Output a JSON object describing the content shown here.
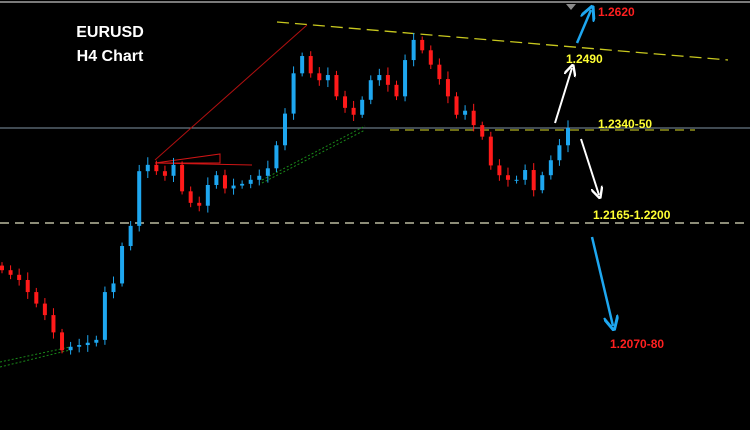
{
  "chart_data": {
    "type": "candlestick",
    "title": "EURUSD",
    "subtitle": "H4 Chart",
    "grid": false,
    "colors": {
      "background": "#000000",
      "bull": "#1ea7f0",
      "bear": "#ff1a1a",
      "level_label": "#ffff33",
      "target_label": "#ff2020",
      "trendline": "#c8c81e"
    },
    "ylim": [
      1.19,
      1.27
    ],
    "closes": [
      1.2098,
      1.209,
      1.2081,
      1.206,
      1.204,
      1.202,
      1.199,
      1.1959,
      1.1965,
      1.1968,
      1.1972,
      1.1977,
      1.206,
      1.2075,
      1.214,
      1.2175,
      1.227,
      1.2281,
      1.227,
      1.2262,
      1.2281,
      1.2235,
      1.2215,
      1.221,
      1.2246,
      1.2263,
      1.224,
      1.2245,
      1.2248,
      1.2255,
      1.2262,
      1.2275,
      1.2315,
      1.237,
      1.244,
      1.247,
      1.244,
      1.2428,
      1.2437,
      1.24,
      1.238,
      1.2368,
      1.2394,
      1.2428,
      1.2437,
      1.242,
      1.24,
      1.2463,
      1.2498,
      1.248,
      1.2455,
      1.243,
      1.24,
      1.2368,
      1.2375,
      1.235,
      1.233,
      1.228,
      1.2263,
      1.2255,
      1.2255,
      1.2272,
      1.2237,
      1.2263,
      1.2289,
      1.2315,
      1.2345
    ],
    "annotations": {
      "target_high": "1.2620",
      "resistance_1": "1.2490",
      "pivot": "1.2340-50",
      "support_1": "1.2165-1.2200",
      "target_low": "1.2070-80"
    }
  }
}
